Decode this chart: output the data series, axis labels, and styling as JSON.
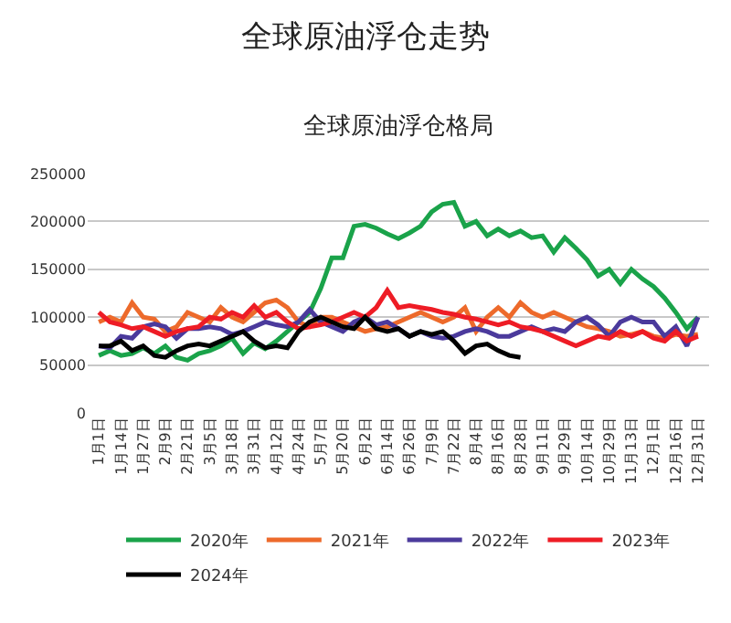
{
  "chart_data": {
    "type": "line",
    "title": "全球原油浮仓走势",
    "subtitle": "全球原油浮仓格局",
    "categories": [
      "1月1日",
      null,
      "1月14日",
      null,
      "1月27日",
      null,
      "2月9日",
      null,
      "2月21日",
      null,
      "3月5日",
      null,
      "3月18日",
      null,
      "3月31日",
      null,
      "4月12日",
      null,
      "4月24日",
      null,
      "5月7日",
      null,
      "5月20日",
      null,
      "6月2日",
      null,
      "6月14日",
      null,
      "6月26日",
      null,
      "7月9日",
      null,
      "7月22日",
      null,
      "8月4日",
      null,
      "8月16日",
      null,
      "8月28日",
      null,
      "9月11日",
      null,
      "9月29日",
      null,
      "10月14日",
      null,
      "10月29日",
      null,
      "11月13日",
      null,
      "12月1日",
      null,
      "12月16日",
      null,
      "12月31日"
    ],
    "series": [
      {
        "name": "2020年",
        "color": "#1aa34a",
        "values": [
          60000,
          65000,
          60000,
          62000,
          68000,
          62000,
          70000,
          58000,
          55000,
          62000,
          65000,
          70000,
          78000,
          62000,
          73000,
          67000,
          75000,
          85000,
          95000,
          105000,
          130000,
          162000,
          162000,
          195000,
          197000,
          193000,
          187000,
          182000,
          188000,
          195000,
          210000,
          218000,
          220000,
          195000,
          200000,
          185000,
          192000,
          185000,
          190000,
          183000,
          185000,
          168000,
          183000,
          172000,
          160000,
          143000,
          150000,
          135000,
          150000,
          140000,
          132000,
          120000,
          105000,
          88000,
          100000
        ]
      },
      {
        "name": "2021年",
        "color": "#ed6a2b",
        "values": [
          95000,
          100000,
          95000,
          115000,
          100000,
          98000,
          85000,
          90000,
          105000,
          100000,
          95000,
          110000,
          100000,
          95000,
          105000,
          115000,
          118000,
          110000,
          95000,
          90000,
          100000,
          100000,
          95000,
          90000,
          85000,
          88000,
          90000,
          95000,
          100000,
          105000,
          100000,
          95000,
          100000,
          110000,
          85000,
          100000,
          110000,
          100000,
          115000,
          105000,
          100000,
          105000,
          100000,
          95000,
          90000,
          88000,
          85000,
          80000,
          82000,
          85000,
          80000,
          78000,
          82000,
          80000,
          82000
        ]
      },
      {
        "name": "2022年",
        "color": "#4b3a9c",
        "values": [
          70000,
          68000,
          80000,
          78000,
          90000,
          93000,
          90000,
          78000,
          88000,
          88000,
          90000,
          88000,
          82000,
          85000,
          90000,
          95000,
          92000,
          90000,
          95000,
          108000,
          95000,
          90000,
          85000,
          95000,
          100000,
          92000,
          95000,
          88000,
          80000,
          85000,
          80000,
          78000,
          80000,
          85000,
          88000,
          85000,
          80000,
          80000,
          85000,
          90000,
          85000,
          88000,
          85000,
          95000,
          100000,
          92000,
          80000,
          95000,
          100000,
          95000,
          95000,
          80000,
          90000,
          70000,
          100000
        ]
      },
      {
        "name": "2023年",
        "color": "#ee1c25",
        "values": [
          105000,
          95000,
          92000,
          88000,
          90000,
          85000,
          80000,
          85000,
          88000,
          90000,
          100000,
          98000,
          105000,
          100000,
          112000,
          100000,
          105000,
          95000,
          88000,
          90000,
          92000,
          95000,
          100000,
          105000,
          100000,
          110000,
          128000,
          110000,
          112000,
          110000,
          108000,
          105000,
          103000,
          100000,
          98000,
          95000,
          92000,
          95000,
          90000,
          88000,
          85000,
          80000,
          75000,
          70000,
          75000,
          80000,
          78000,
          85000,
          80000,
          85000,
          78000,
          75000,
          85000,
          75000,
          80000
        ]
      },
      {
        "name": "2024年",
        "color": "#000000",
        "values": [
          70000,
          70000,
          75000,
          65000,
          70000,
          60000,
          58000,
          65000,
          70000,
          72000,
          70000,
          75000,
          80000,
          85000,
          75000,
          68000,
          70000,
          68000,
          85000,
          95000,
          100000,
          95000,
          90000,
          88000,
          100000,
          88000,
          85000,
          88000,
          80000,
          85000,
          82000,
          85000,
          75000,
          62000,
          70000,
          72000,
          65000,
          60000,
          58000,
          null,
          null,
          null,
          null,
          null,
          null,
          null,
          null,
          null,
          null,
          null,
          null,
          null,
          null,
          null,
          null
        ]
      }
    ],
    "ylim": [
      0,
      250000
    ],
    "yticks": [
      0,
      50000,
      100000,
      150000,
      200000,
      250000
    ],
    "grid": "y",
    "legend": "bottom",
    "marker": "none",
    "line_style": "solid"
  }
}
